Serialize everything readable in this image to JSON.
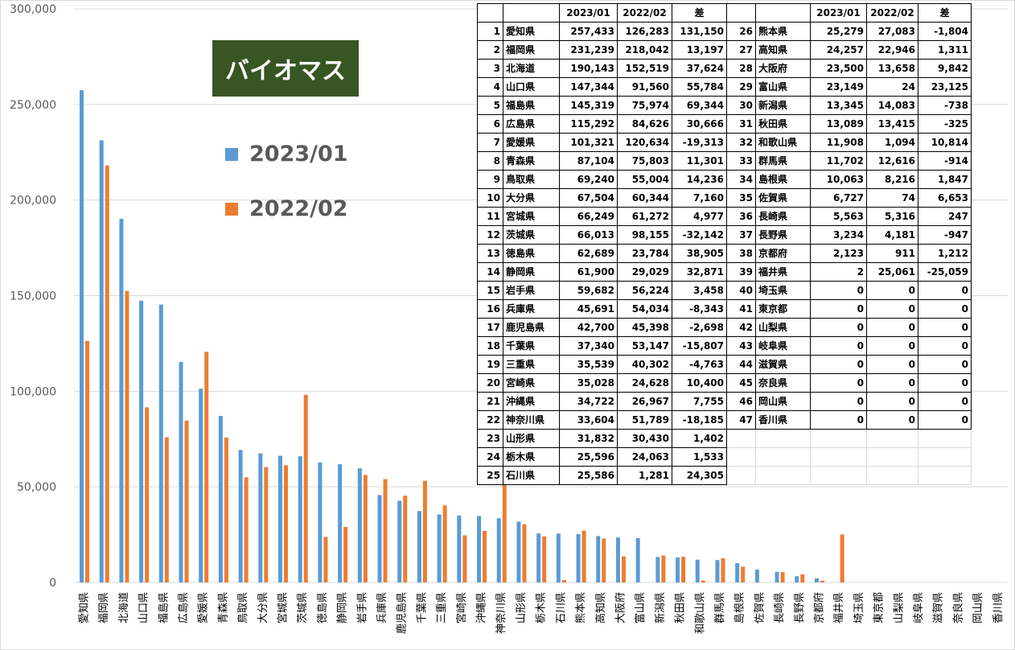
{
  "chart_data": {
    "type": "bar",
    "title": "バイオマス",
    "ylim": [
      0,
      300000
    ],
    "yticks": [
      "0",
      "50,000",
      "100,000",
      "150,000",
      "200,000",
      "250,000",
      "300,000"
    ],
    "grid": true,
    "legend_position": "left-top",
    "categories": [
      "愛知県",
      "福岡県",
      "北海道",
      "山口県",
      "福島県",
      "広島県",
      "愛媛県",
      "青森県",
      "鳥取県",
      "大分県",
      "宮城県",
      "茨城県",
      "徳島県",
      "静岡県",
      "岩手県",
      "兵庫県",
      "鹿児島県",
      "千葉県",
      "三重県",
      "宮崎県",
      "沖縄県",
      "神奈川県",
      "山形県",
      "栃木県",
      "石川県",
      "熊本県",
      "高知県",
      "大阪府",
      "富山県",
      "新潟県",
      "秋田県",
      "和歌山県",
      "群馬県",
      "島根県",
      "佐賀県",
      "長崎県",
      "長野県",
      "京都府",
      "福井県",
      "埼玉県",
      "東京都",
      "山梨県",
      "岐阜県",
      "滋賀県",
      "奈良県",
      "岡山県",
      "香川県"
    ],
    "series": [
      {
        "name": "2023/01",
        "color": "#5B9BD5",
        "values": [
          257433,
          231239,
          190143,
          147344,
          145319,
          115292,
          101321,
          87104,
          69240,
          67504,
          66249,
          66013,
          62689,
          61900,
          59682,
          45691,
          42700,
          37340,
          35539,
          35028,
          34722,
          33604,
          31832,
          25596,
          25586,
          25279,
          24257,
          23500,
          23149,
          13345,
          13089,
          11908,
          11702,
          10063,
          6727,
          5563,
          3234,
          2123,
          2,
          0,
          0,
          0,
          0,
          0,
          0,
          0,
          0
        ]
      },
      {
        "name": "2022/02",
        "color": "#ED7D31",
        "values": [
          126283,
          218042,
          152519,
          91560,
          75974,
          84626,
          120634,
          75803,
          55004,
          60344,
          61272,
          98155,
          23784,
          29029,
          56224,
          54034,
          45398,
          53147,
          40302,
          24628,
          26967,
          51789,
          30430,
          24063,
          1281,
          27083,
          22946,
          13658,
          24,
          14083,
          13415,
          1094,
          12616,
          8216,
          74,
          5316,
          4181,
          911,
          25061,
          0,
          0,
          0,
          0,
          0,
          0,
          0,
          0
        ]
      }
    ]
  },
  "table": {
    "headers": [
      "",
      "",
      "2023/01",
      "2022/02",
      "差",
      "",
      "2023/01",
      "2022/02",
      "差"
    ],
    "left": [
      [
        "1",
        "愛知県",
        "257,433",
        "126,283",
        "131,150"
      ],
      [
        "2",
        "福岡県",
        "231,239",
        "218,042",
        "13,197"
      ],
      [
        "3",
        "北海道",
        "190,143",
        "152,519",
        "37,624"
      ],
      [
        "4",
        "山口県",
        "147,344",
        "91,560",
        "55,784"
      ],
      [
        "5",
        "福島県",
        "145,319",
        "75,974",
        "69,344"
      ],
      [
        "6",
        "広島県",
        "115,292",
        "84,626",
        "30,666"
      ],
      [
        "7",
        "愛媛県",
        "101,321",
        "120,634",
        "-19,313"
      ],
      [
        "8",
        "青森県",
        "87,104",
        "75,803",
        "11,301"
      ],
      [
        "9",
        "鳥取県",
        "69,240",
        "55,004",
        "14,236"
      ],
      [
        "10",
        "大分県",
        "67,504",
        "60,344",
        "7,160"
      ],
      [
        "11",
        "宮城県",
        "66,249",
        "61,272",
        "4,977"
      ],
      [
        "12",
        "茨城県",
        "66,013",
        "98,155",
        "-32,142"
      ],
      [
        "13",
        "徳島県",
        "62,689",
        "23,784",
        "38,905"
      ],
      [
        "14",
        "静岡県",
        "61,900",
        "29,029",
        "32,871"
      ],
      [
        "15",
        "岩手県",
        "59,682",
        "56,224",
        "3,458"
      ],
      [
        "16",
        "兵庫県",
        "45,691",
        "54,034",
        "-8,343"
      ],
      [
        "17",
        "鹿児島県",
        "42,700",
        "45,398",
        "-2,698"
      ],
      [
        "18",
        "千葉県",
        "37,340",
        "53,147",
        "-15,807"
      ],
      [
        "19",
        "三重県",
        "35,539",
        "40,302",
        "-4,763"
      ],
      [
        "20",
        "宮崎県",
        "35,028",
        "24,628",
        "10,400"
      ],
      [
        "21",
        "沖縄県",
        "34,722",
        "26,967",
        "7,755"
      ],
      [
        "22",
        "神奈川県",
        "33,604",
        "51,789",
        "-18,185"
      ],
      [
        "23",
        "山形県",
        "31,832",
        "30,430",
        "1,402"
      ],
      [
        "24",
        "栃木県",
        "25,596",
        "24,063",
        "1,533"
      ],
      [
        "25",
        "石川県",
        "25,586",
        "1,281",
        "24,305"
      ]
    ],
    "right": [
      [
        "26",
        "熊本県",
        "25,279",
        "27,083",
        "-1,804"
      ],
      [
        "27",
        "高知県",
        "24,257",
        "22,946",
        "1,311"
      ],
      [
        "28",
        "大阪府",
        "23,500",
        "13,658",
        "9,842"
      ],
      [
        "29",
        "富山県",
        "23,149",
        "24",
        "23,125"
      ],
      [
        "30",
        "新潟県",
        "13,345",
        "14,083",
        "-738"
      ],
      [
        "31",
        "秋田県",
        "13,089",
        "13,415",
        "-325"
      ],
      [
        "32",
        "和歌山県",
        "11,908",
        "1,094",
        "10,814"
      ],
      [
        "33",
        "群馬県",
        "11,702",
        "12,616",
        "-914"
      ],
      [
        "34",
        "島根県",
        "10,063",
        "8,216",
        "1,847"
      ],
      [
        "35",
        "佐賀県",
        "6,727",
        "74",
        "6,653"
      ],
      [
        "36",
        "長崎県",
        "5,563",
        "5,316",
        "247"
      ],
      [
        "37",
        "長野県",
        "3,234",
        "4,181",
        "-947"
      ],
      [
        "38",
        "京都府",
        "2,123",
        "911",
        "1,212"
      ],
      [
        "39",
        "福井県",
        "2",
        "25,061",
        "-25,059"
      ],
      [
        "40",
        "埼玉県",
        "0",
        "0",
        "0"
      ],
      [
        "41",
        "東京都",
        "0",
        "0",
        "0"
      ],
      [
        "42",
        "山梨県",
        "0",
        "0",
        "0"
      ],
      [
        "43",
        "岐阜県",
        "0",
        "0",
        "0"
      ],
      [
        "44",
        "滋賀県",
        "0",
        "0",
        "0"
      ],
      [
        "45",
        "奈良県",
        "0",
        "0",
        "0"
      ],
      [
        "46",
        "岡山県",
        "0",
        "0",
        "0"
      ],
      [
        "47",
        "香川県",
        "0",
        "0",
        "0"
      ]
    ]
  }
}
